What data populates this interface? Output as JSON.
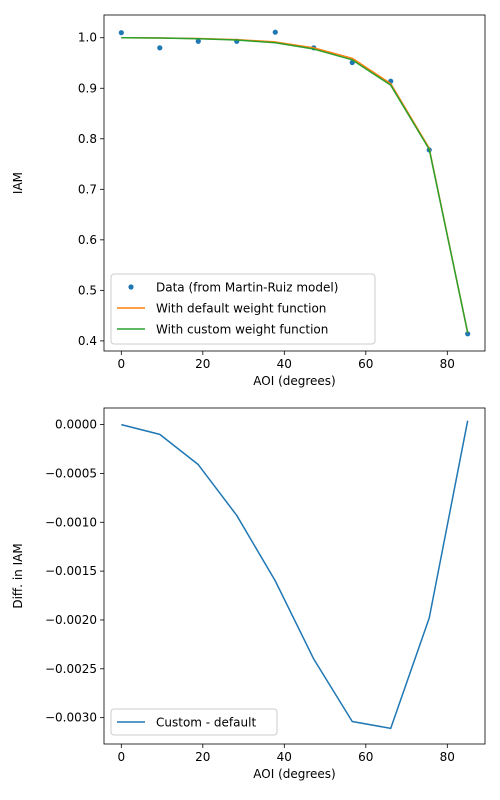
{
  "chart_data": [
    {
      "type": "line",
      "title": "",
      "xlabel": "AOI (degrees)",
      "ylabel": "IAM",
      "xlim": [
        -4.25,
        89.25
      ],
      "ylim": [
        0.38,
        1.045
      ],
      "xticks": [
        0,
        20,
        40,
        60,
        80
      ],
      "xtick_labels": [
        "0",
        "20",
        "40",
        "60",
        "80"
      ],
      "yticks": [
        0.4,
        0.5,
        0.6,
        0.7,
        0.8,
        0.9,
        1.0
      ],
      "ytick_labels": [
        "0.4",
        "0.5",
        "0.6",
        "0.7",
        "0.8",
        "0.9",
        "1.0"
      ],
      "grid": false,
      "legend_position": "lower-left",
      "series": [
        {
          "name": "Data (from Martin-Ruiz model)",
          "kind": "points",
          "color": "#1f77b4",
          "x": [
            0,
            9.44,
            18.89,
            28.33,
            37.78,
            47.22,
            56.67,
            66.11,
            75.56,
            85
          ],
          "y": [
            1.01,
            0.98,
            0.993,
            0.993,
            1.011,
            0.98,
            0.951,
            0.914,
            0.778,
            0.414
          ]
        },
        {
          "name": "With default weight function",
          "kind": "line",
          "color": "#ff7f0e",
          "x": [
            0,
            9.44,
            18.89,
            28.33,
            37.78,
            47.22,
            56.67,
            66.11,
            75.56,
            85
          ],
          "y": [
            1.0,
            0.9996,
            0.9984,
            0.9963,
            0.9917,
            0.98,
            0.9593,
            0.9092,
            0.7812,
            0.4163
          ]
        },
        {
          "name": "With custom weight function",
          "kind": "line",
          "color": "#2ca02c",
          "x": [
            0,
            9.44,
            18.89,
            28.33,
            37.78,
            47.22,
            56.67,
            66.11,
            75.56,
            85
          ],
          "y": [
            1.0,
            0.9995,
            0.998,
            0.9954,
            0.9901,
            0.9776,
            0.9563,
            0.9061,
            0.7792,
            0.4163
          ]
        }
      ]
    },
    {
      "type": "line",
      "title": "",
      "xlabel": "AOI (degrees)",
      "ylabel": "Diff. in IAM",
      "xlim": [
        -4.25,
        89.25
      ],
      "ylim": [
        -0.00327,
        0.00017
      ],
      "xticks": [
        0,
        20,
        40,
        60,
        80
      ],
      "xtick_labels": [
        "0",
        "20",
        "40",
        "60",
        "80"
      ],
      "yticks": [
        0.0,
        -0.0005,
        -0.001,
        -0.0015,
        -0.002,
        -0.0025,
        -0.003
      ],
      "ytick_labels": [
        "0.0000",
        "−0.0005",
        "−0.0010",
        "−0.0015",
        "−0.0020",
        "−0.0025",
        "−0.0030"
      ],
      "grid": false,
      "legend_position": "lower-left",
      "series": [
        {
          "name": "Custom - default",
          "kind": "line",
          "color": "#1f77b4",
          "x": [
            0,
            9.44,
            18.89,
            28.33,
            37.78,
            47.22,
            56.67,
            66.11,
            75.56,
            85
          ],
          "y": [
            0.0,
            -0.0001,
            -0.00041,
            -0.00093,
            -0.0016,
            -0.0024,
            -0.00304,
            -0.00311,
            -0.00198,
            4e-05
          ]
        }
      ]
    }
  ]
}
